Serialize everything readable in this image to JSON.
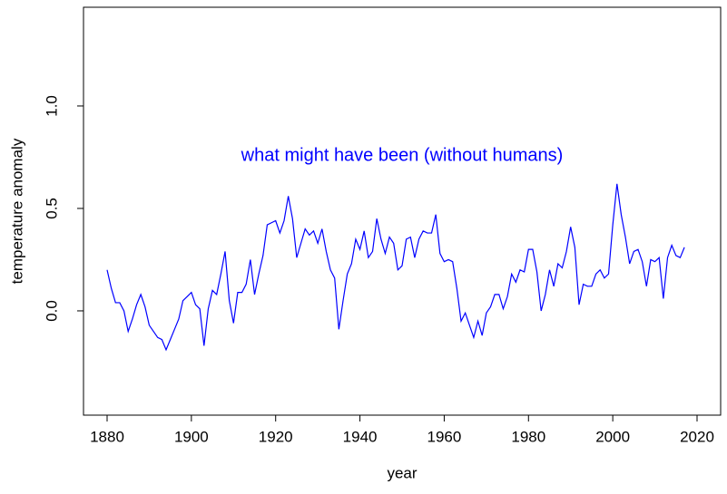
{
  "chart_data": {
    "type": "line",
    "xlabel": "year",
    "ylabel": "temperature anomaly",
    "annotation": {
      "text": "what might have been (without humans)",
      "x": 1950,
      "y": 0.756,
      "color": "#0000ff"
    },
    "x": [
      1880,
      1881,
      1882,
      1883,
      1884,
      1885,
      1886,
      1887,
      1888,
      1889,
      1890,
      1891,
      1892,
      1893,
      1894,
      1895,
      1896,
      1897,
      1898,
      1899,
      1900,
      1901,
      1902,
      1903,
      1904,
      1905,
      1906,
      1907,
      1908,
      1909,
      1910,
      1911,
      1912,
      1913,
      1914,
      1915,
      1916,
      1917,
      1918,
      1919,
      1920,
      1921,
      1922,
      1923,
      1924,
      1925,
      1926,
      1927,
      1928,
      1929,
      1930,
      1931,
      1932,
      1933,
      1934,
      1935,
      1936,
      1937,
      1938,
      1939,
      1940,
      1941,
      1942,
      1943,
      1944,
      1945,
      1946,
      1947,
      1948,
      1949,
      1950,
      1951,
      1952,
      1953,
      1954,
      1955,
      1956,
      1957,
      1958,
      1959,
      1960,
      1961,
      1962,
      1963,
      1964,
      1965,
      1966,
      1967,
      1968,
      1969,
      1970,
      1971,
      1972,
      1973,
      1974,
      1975,
      1976,
      1977,
      1978,
      1979,
      1980,
      1981,
      1982,
      1983,
      1984,
      1985,
      1986,
      1987,
      1988,
      1989,
      1990,
      1991,
      1992,
      1993,
      1994,
      1995,
      1996,
      1997,
      1998,
      1999,
      2000,
      2001,
      2002,
      2003,
      2004,
      2005,
      2006,
      2007,
      2008,
      2009,
      2010,
      2011,
      2012,
      2013,
      2014,
      2015,
      2016,
      2017
    ],
    "series": [
      {
        "name": null,
        "color": "#0000ff",
        "values": [
          0.2,
          0.11,
          0.04,
          0.04,
          0.0,
          -0.1,
          -0.04,
          0.03,
          0.08,
          0.02,
          -0.07,
          -0.1,
          -0.13,
          -0.14,
          -0.19,
          -0.14,
          -0.09,
          -0.04,
          0.05,
          0.07,
          0.09,
          0.03,
          0.01,
          -0.17,
          0.01,
          0.1,
          0.08,
          0.18,
          0.29,
          0.05,
          -0.06,
          0.09,
          0.09,
          0.13,
          0.25,
          0.08,
          0.18,
          0.27,
          0.42,
          0.43,
          0.44,
          0.38,
          0.44,
          0.56,
          0.45,
          0.26,
          0.33,
          0.4,
          0.37,
          0.39,
          0.33,
          0.4,
          0.29,
          0.2,
          0.16,
          -0.09,
          0.05,
          0.18,
          0.23,
          0.35,
          0.3,
          0.39,
          0.26,
          0.29,
          0.45,
          0.35,
          0.28,
          0.36,
          0.33,
          0.2,
          0.22,
          0.35,
          0.36,
          0.26,
          0.35,
          0.39,
          0.38,
          0.38,
          0.47,
          0.28,
          0.24,
          0.25,
          0.24,
          0.11,
          -0.05,
          -0.01,
          -0.07,
          -0.13,
          -0.05,
          -0.12,
          -0.01,
          0.02,
          0.08,
          0.08,
          0.01,
          0.07,
          0.18,
          0.14,
          0.2,
          0.19,
          0.3,
          0.3,
          0.19,
          0.0,
          0.08,
          0.2,
          0.12,
          0.23,
          0.21,
          0.29,
          0.41,
          0.31,
          0.03,
          0.13,
          0.12,
          0.12,
          0.18,
          0.2,
          0.16,
          0.18,
          0.42,
          0.62,
          0.47,
          0.36,
          0.23,
          0.29,
          0.3,
          0.24,
          0.12,
          0.25,
          0.24,
          0.26,
          0.06,
          0.26,
          0.32,
          0.27,
          0.26,
          0.31
        ]
      }
    ],
    "xlim": [
      1874.4,
      2025.6
    ],
    "ylim": [
      -0.509,
      1.482
    ],
    "xticks": [
      1880,
      1900,
      1920,
      1940,
      1960,
      1980,
      2000,
      2020
    ],
    "yticks": [
      {
        "value": 0,
        "label": "0.0"
      },
      0.5,
      {
        "value": 1,
        "label": "1.0"
      }
    ],
    "grid": false
  }
}
